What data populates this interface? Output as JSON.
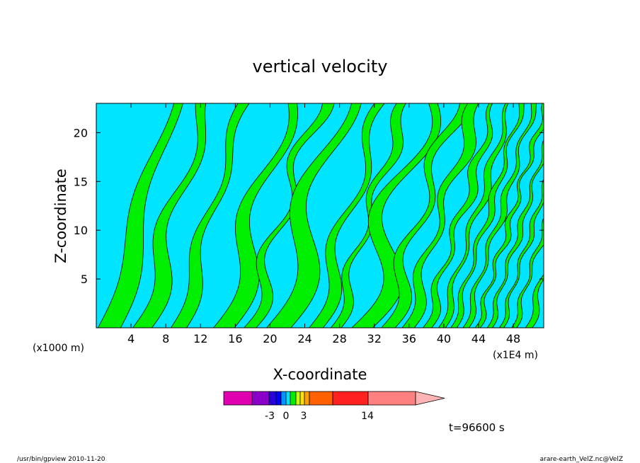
{
  "chart_data": {
    "type": "heatmap",
    "title": "vertical velocity",
    "xlabel": "X-coordinate",
    "ylabel": "Z-coordinate",
    "x_unit_label": "(x1000 m)",
    "x_unit_label_right": "(x1E4 m)",
    "xlim": [
      0,
      51.5
    ],
    "ylim": [
      0,
      23
    ],
    "x_ticks": [
      4,
      8,
      12,
      16,
      20,
      24,
      28,
      32,
      36,
      40,
      44,
      48
    ],
    "y_ticks": [
      5,
      10,
      15,
      20
    ],
    "colors": {
      "negative_fill": "#00e5ff",
      "positive_fill": "#00ee00",
      "contour": "#000000"
    },
    "colorbar": {
      "tick_labels": [
        "-3",
        "0",
        "3",
        "14"
      ],
      "colors": [
        "#e000b0",
        "#8a00c8",
        "#2a00d8",
        "#0000ff",
        "#0096ff",
        "#00e0ff",
        "#00ee00",
        "#c8ff00",
        "#ffe000",
        "#ffa000",
        "#ff6000",
        "#ff2020",
        "#ff8080",
        "#ffb4b4"
      ]
    },
    "annotation": "t=96600 s"
  },
  "footer": {
    "left": "/usr/bin/gpview   2010-11-20",
    "right": "arare-earth_VelZ.nc@VelZ"
  }
}
